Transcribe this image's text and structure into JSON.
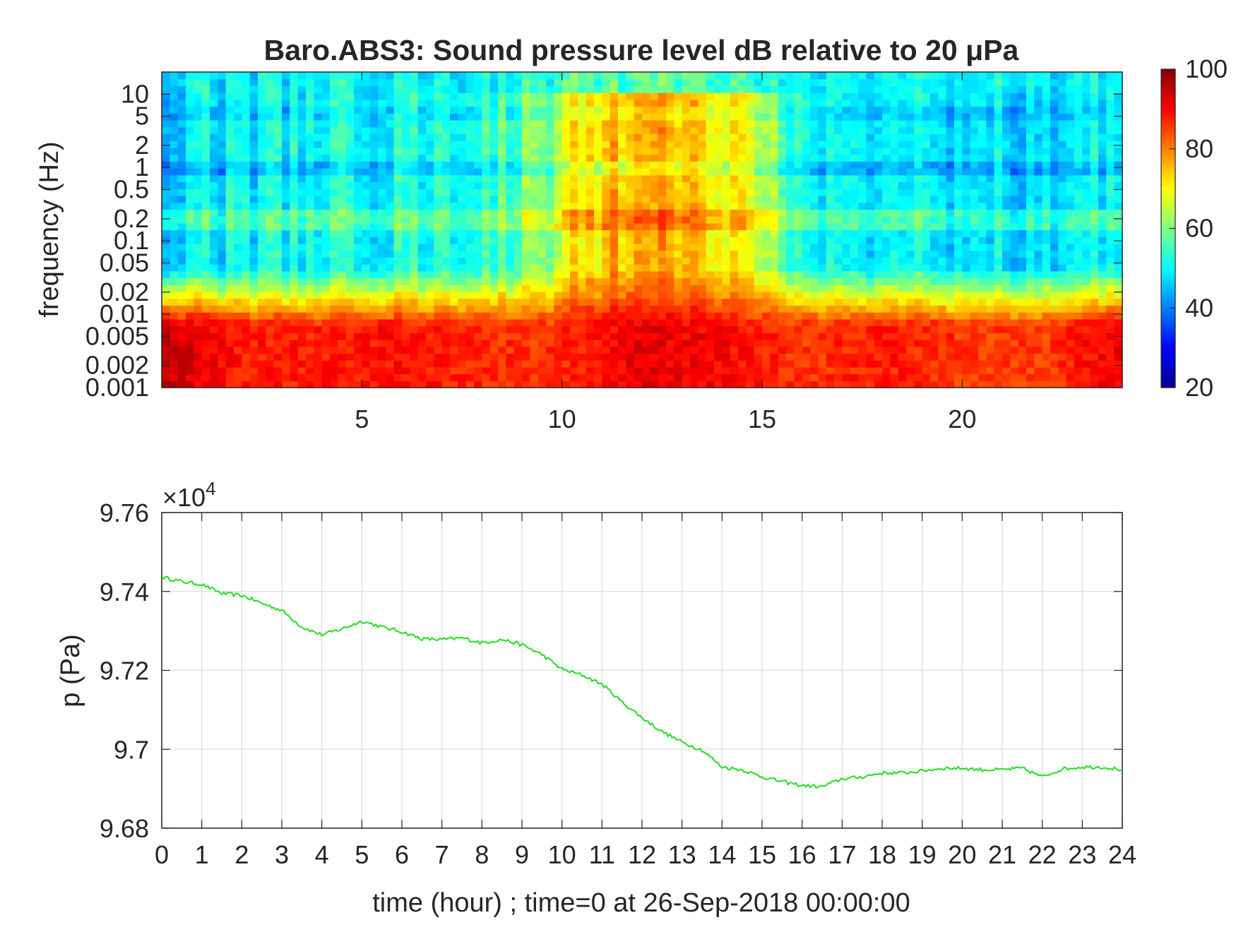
{
  "chart_data": [
    {
      "type": "heatmap",
      "title": "Baro.ABS3: Sound pressure level dB relative to 20 μPa",
      "ylabel": "frequency (Hz)",
      "xlabel": "",
      "y_scale": "log",
      "ylim": [
        0.001,
        20
      ],
      "xlim": [
        0,
        24
      ],
      "y_ticks": [
        0.001,
        0.002,
        0.005,
        0.01,
        0.02,
        0.05,
        0.1,
        0.2,
        0.5,
        1,
        2,
        5,
        10
      ],
      "y_tick_labels": [
        "0.001",
        "0.002",
        "0.005",
        "0.01",
        "0.02",
        "0.05",
        "0.1",
        "0.2",
        "0.5",
        "1",
        "2",
        "5",
        "10"
      ],
      "x_ticks": [
        5,
        10,
        15,
        20
      ],
      "x_tick_labels": [
        "5",
        "10",
        "15",
        "20"
      ],
      "colormap": "jet",
      "colorbar": {
        "range": [
          20,
          100
        ],
        "ticks": [
          20,
          40,
          60,
          80,
          100
        ],
        "tick_labels": [
          "20",
          "40",
          "60",
          "80",
          "100"
        ],
        "placement": "right"
      },
      "time_hours": [
        0,
        2,
        4,
        6,
        8,
        9.5,
        10.5,
        12,
        14,
        15,
        16,
        18,
        20,
        22,
        24
      ],
      "low_freq_level_db": [
        95,
        88,
        88,
        89,
        87,
        86,
        88,
        92,
        90,
        88,
        86,
        88,
        86,
        85,
        92
      ],
      "background_level_db": [
        48,
        49,
        50,
        51,
        54,
        60,
        72,
        78,
        74,
        68,
        50,
        49,
        48,
        48,
        50
      ]
    },
    {
      "type": "line",
      "ylabel": "p (Pa)",
      "xlabel": "time (hour) ; time=0 at 26-Sep-2018 00:00:00",
      "y_exponent_label": "×10",
      "y_exponent": "4",
      "xlim": [
        0,
        24
      ],
      "ylim": [
        9.68,
        9.76
      ],
      "y_ticks": [
        9.68,
        9.7,
        9.72,
        9.74,
        9.76
      ],
      "y_tick_labels": [
        "9.68",
        "9.7",
        "9.72",
        "9.74",
        "9.76"
      ],
      "x_ticks": [
        0,
        1,
        2,
        3,
        4,
        5,
        6,
        7,
        8,
        9,
        10,
        11,
        12,
        13,
        14,
        15,
        16,
        17,
        18,
        19,
        20,
        21,
        22,
        23,
        24
      ],
      "x_tick_labels": [
        "0",
        "1",
        "2",
        "3",
        "4",
        "5",
        "6",
        "7",
        "8",
        "9",
        "10",
        "11",
        "12",
        "13",
        "14",
        "15",
        "16",
        "17",
        "18",
        "19",
        "20",
        "21",
        "22",
        "23",
        "24"
      ],
      "grid": true,
      "line_color": "#22dd22",
      "series": [
        {
          "x": [
            0,
            0.5,
            1,
            1.5,
            2,
            2.5,
            3,
            3.5,
            4,
            4.5,
            5,
            5.5,
            6,
            6.5,
            7,
            7.5,
            8,
            8.5,
            9,
            9.5,
            10,
            10.5,
            11,
            11.5,
            12,
            12.5,
            13,
            13.5,
            14,
            14.5,
            15,
            15.5,
            16,
            16.5,
            17,
            17.5,
            18,
            18.5,
            19,
            19.5,
            20,
            20.5,
            21,
            21.5,
            22,
            22.5,
            23,
            23.5,
            24
          ],
          "y": [
            9.7437,
            9.7425,
            9.7418,
            9.7395,
            9.739,
            9.737,
            9.7352,
            9.731,
            9.729,
            9.7305,
            9.7325,
            9.731,
            9.7298,
            9.728,
            9.7278,
            9.7282,
            9.727,
            9.7278,
            9.7265,
            9.724,
            9.7203,
            9.7188,
            9.7165,
            9.712,
            9.708,
            9.7045,
            9.7018,
            9.6998,
            9.6955,
            9.6948,
            9.693,
            9.6918,
            9.6908,
            9.6905,
            9.6925,
            9.693,
            9.694,
            9.694,
            9.6945,
            9.6952,
            9.6952,
            9.6948,
            9.6948,
            9.6952,
            9.693,
            9.695,
            9.6955,
            9.6955,
            9.6948
          ]
        }
      ]
    }
  ]
}
